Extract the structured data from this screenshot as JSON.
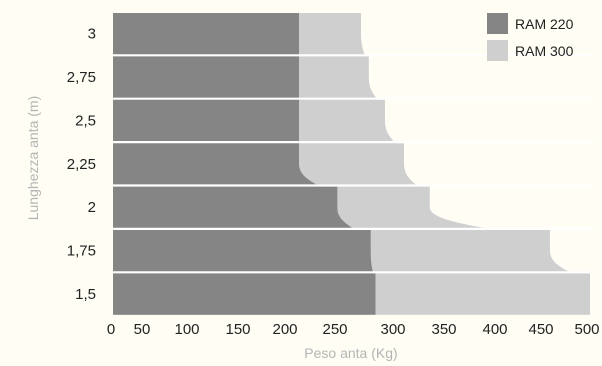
{
  "chart_data": {
    "type": "area",
    "title": "",
    "xlabel": "Peso anta (Kg)",
    "ylabel": "Lunghezza anta (m)",
    "xlim": [
      0,
      500
    ],
    "x_ticks": [
      "0",
      "50",
      "100",
      "150",
      "200",
      "250",
      "300",
      "350",
      "400",
      "450",
      "500"
    ],
    "y_ticks": [
      "1,5",
      "1,75",
      "2",
      "2,25",
      "2,5",
      "2,75",
      "3"
    ],
    "y_values": [
      1.5,
      1.75,
      2,
      2.25,
      2.5,
      2.75,
      3
    ],
    "grid": false,
    "legend_position": "top-right",
    "series": [
      {
        "name": "RAM 220",
        "color": "#858585",
        "points": [
          {
            "y": 1.5,
            "x": 275
          },
          {
            "y": 1.75,
            "x": 270
          },
          {
            "y": 2,
            "x": 235
          },
          {
            "y": 2.25,
            "x": 195
          }
        ]
      },
      {
        "name": "RAM 300",
        "color": "#cfcfcf",
        "points": [
          {
            "y": 1.5,
            "x": 500
          },
          {
            "y": 1.75,
            "x": 458
          },
          {
            "y": 2,
            "x": 332
          },
          {
            "y": 2.25,
            "x": 305
          },
          {
            "y": 2.5,
            "x": 285
          },
          {
            "y": 2.75,
            "x": 268
          },
          {
            "y": 3,
            "x": 260
          }
        ]
      }
    ]
  }
}
